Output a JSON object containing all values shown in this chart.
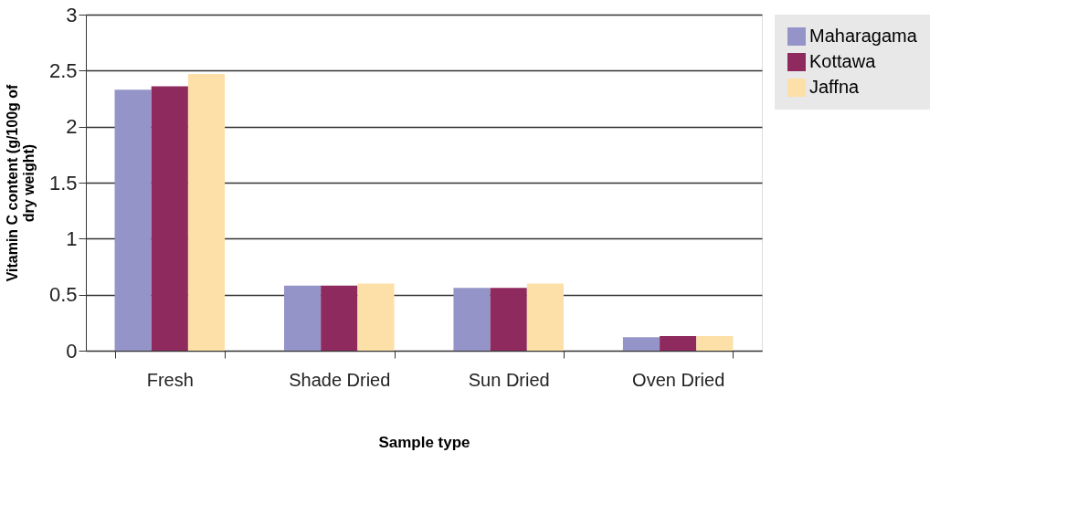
{
  "chart_data": {
    "type": "bar",
    "xlabel": "Sample type",
    "ylabel": "Vitamin C content (g/100g of dry weight)",
    "categories": [
      "Fresh",
      "Shade Dried",
      "Sun Dried",
      "Oven Dried"
    ],
    "series": [
      {
        "name": "Maharagama",
        "color": "#9494c8",
        "values": [
          2.33,
          0.58,
          0.56,
          0.12
        ]
      },
      {
        "name": "Kottawa",
        "color": "#8e2a5e",
        "values": [
          2.36,
          0.58,
          0.56,
          0.13
        ]
      },
      {
        "name": "Jaffna",
        "color": "#fde0a8",
        "values": [
          2.47,
          0.6,
          0.6,
          0.13
        ]
      }
    ],
    "ylim": [
      0,
      3
    ],
    "yticks": [
      0,
      0.5,
      1,
      1.5,
      2,
      2.5,
      3
    ],
    "grid": "y",
    "legend": "right"
  }
}
